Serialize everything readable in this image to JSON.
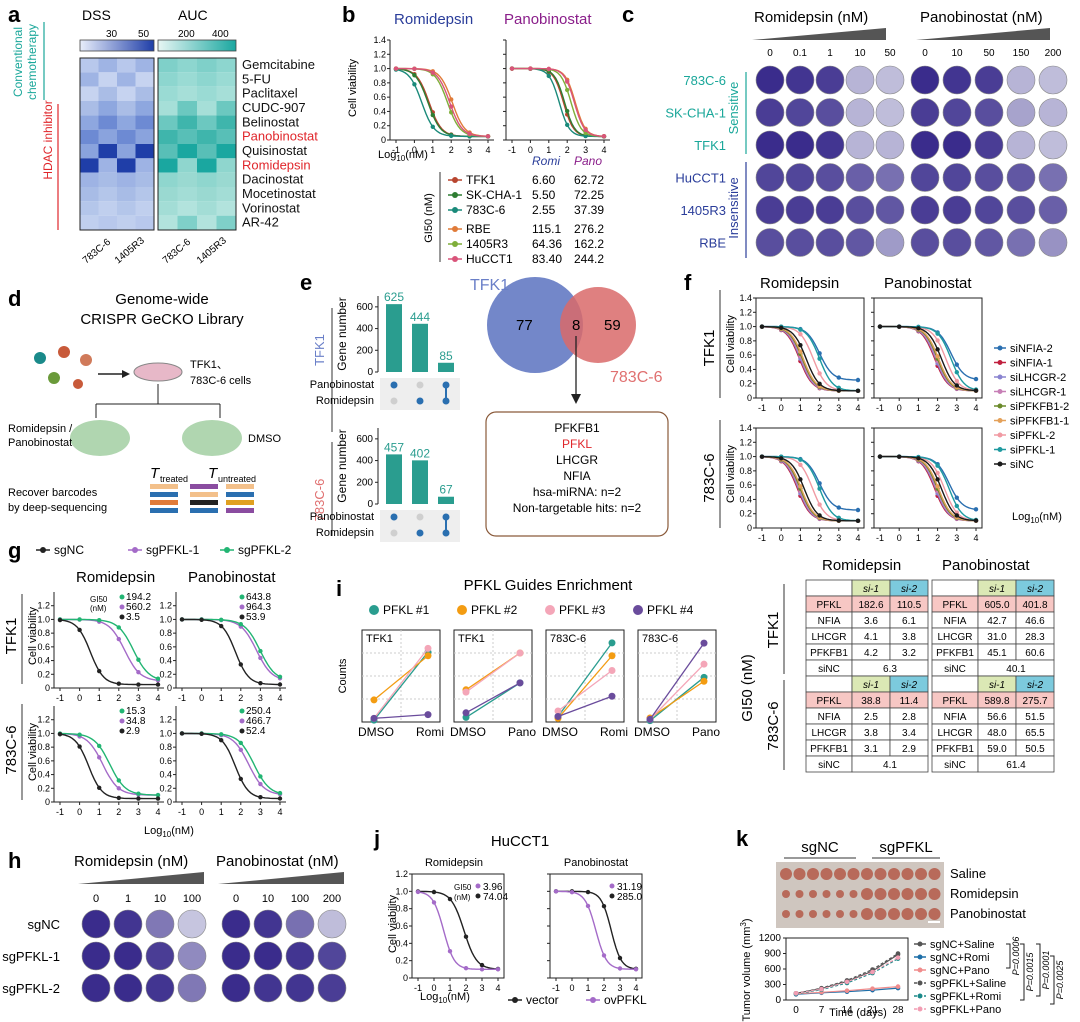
{
  "panels": {
    "a": {
      "letter": "a",
      "headers": [
        "DSS",
        "AUC"
      ],
      "dss_ticks": [
        "30",
        "50"
      ],
      "auc_ticks": [
        "200",
        "400"
      ],
      "group_conventional": [
        "Conventional",
        "chemotherapy"
      ],
      "group_hdac": "HDAC inhibitor",
      "columns": [
        "783C-6",
        "1405R3",
        "783C-6",
        "1405R3"
      ],
      "drugs": [
        {
          "name": "Gemcitabine",
          "color": "#111111"
        },
        {
          "name": "5-FU",
          "color": "#111111"
        },
        {
          "name": "Paclitaxel",
          "color": "#111111"
        },
        {
          "name": "CUDC-907",
          "color": "#111111"
        },
        {
          "name": "Belinostat",
          "color": "#111111"
        },
        {
          "name": "Panobinostat",
          "color": "#e0262b"
        },
        {
          "name": "Quisinostat",
          "color": "#111111"
        },
        {
          "name": "Romidepsin",
          "color": "#e0262b"
        },
        {
          "name": "Dacinostat",
          "color": "#111111"
        },
        {
          "name": "Mocetinostat",
          "color": "#111111"
        },
        {
          "name": "Vorinostat",
          "color": "#111111"
        },
        {
          "name": "AR-42",
          "color": "#111111"
        }
      ]
    },
    "b": {
      "letter": "b",
      "title_romi": "Romidepsin",
      "title_pano": "Panobinostat",
      "ylabel": "Cell viability",
      "xlabel_main": "Log",
      "xlabel_sub": "10",
      "xlabel_unit": "(nM)",
      "gi50_label": "GI50 (nM)",
      "col_romi": "Romi",
      "col_pano": "Pano",
      "rows": [
        {
          "name": "TFK1",
          "romi": "6.60",
          "pano": "62.72",
          "color": "#b8452f"
        },
        {
          "name": "SK-CHA-1",
          "romi": "5.50",
          "pano": "72.25",
          "color": "#2e7d32"
        },
        {
          "name": "783C-6",
          "romi": "2.55",
          "pano": "37.39",
          "color": "#1a8a7a"
        },
        {
          "name": "RBE",
          "romi": "115.1",
          "pano": "276.2",
          "color": "#e07b39"
        },
        {
          "name": "1405R3",
          "romi": "64.36",
          "pano": "162.2",
          "color": "#7fae3a"
        },
        {
          "name": "HuCCT1",
          "romi": "83.40",
          "pano": "244.2",
          "color": "#d9547a"
        }
      ]
    },
    "c": {
      "letter": "c",
      "title_romi": "Romidepsin (nM)",
      "title_pano": "Panobinostat (nM)",
      "romi_doses": [
        "0",
        "0.1",
        "1",
        "10",
        "50"
      ],
      "pano_doses": [
        "0",
        "10",
        "50",
        "150",
        "200"
      ],
      "sensitive": "Sensitive",
      "insensitive": "Insensitive",
      "rows": [
        "783C-6",
        "SK-CHA-1",
        "TFK1",
        "HuCCT1",
        "1405R3",
        "RBE"
      ]
    },
    "d": {
      "letter": "d",
      "title1": "Genome-wide",
      "title2": "CRISPR GeCKO Library",
      "cells1": "TFK1、",
      "cells2": "783C-6 cells",
      "drug1": "Romidepsin /",
      "drug2": "Panobinostat",
      "dmso": "DMSO",
      "treated": "treated",
      "untreated": "untreated",
      "recover1": "Recover barcodes",
      "recover2": "by deep-sequencing"
    },
    "e": {
      "letter": "e",
      "ylabel": "Gene number",
      "tfk1": "TFK1",
      "c783": "783C-6",
      "bars_tfk1": [
        625,
        444,
        85
      ],
      "bars_783": [
        457,
        402,
        67
      ],
      "yticks_tfk1": [
        "600",
        "400",
        "200",
        "0"
      ],
      "yticks_783": [
        "600",
        "400",
        "200",
        "0"
      ],
      "row1": "Panobinostat",
      "row2": "Romidepsin",
      "venn_left_label": "TFK1",
      "venn_right_label": "783C-6",
      "venn_left": "77",
      "venn_mid": "8",
      "venn_right": "59",
      "genes": [
        "PFKFB1",
        "PFKL",
        "LHCGR",
        "NFIA"
      ],
      "mirna": "hsa-miRNA: n=2",
      "nontarget": "Non-targetable hits: n=2"
    },
    "f": {
      "letter": "f",
      "title_romi": "Romidepsin",
      "title_pano": "Panobinostat",
      "row1": "TFK1",
      "row2": "783C-6",
      "ylabel": "Cell viability",
      "xlabel_unit": "(nM)",
      "legend": [
        {
          "name": "siNFIA-2",
          "color": "#2a6fb0"
        },
        {
          "name": "siNFIA-1",
          "color": "#c0203f"
        },
        {
          "name": "siLHCGR-2",
          "color": "#8a84d0"
        },
        {
          "name": "siLHCGR-1",
          "color": "#c77fb6"
        },
        {
          "name": "siPFKFB1-2",
          "color": "#6a8a2a"
        },
        {
          "name": "siPFKFB1-1",
          "color": "#e4a15a"
        },
        {
          "name": "siPFKL-2",
          "color": "#f19aa3"
        },
        {
          "name": "siPFKL-1",
          "color": "#1f9aa0"
        },
        {
          "name": "siNC",
          "color": "#1a1a1a"
        }
      ]
    },
    "g": {
      "letter": "g",
      "legend": [
        {
          "name": "sgNC",
          "color": "#222222"
        },
        {
          "name": "sgPFKL-1",
          "color": "#a46bc8"
        },
        {
          "name": "sgPFKL-2",
          "color": "#22b573"
        }
      ],
      "title_romi": "Romidepsin",
      "title_pano": "Panobinostat",
      "row1": "TFK1",
      "row2": "783C-6",
      "ylabel": "Cell viability",
      "gi50_tag1": "GI50",
      "gi50_tag2": "(nM)",
      "tfk1_romi": [
        "194.2",
        "560.2",
        "3.5"
      ],
      "tfk1_pano": [
        "643.8",
        "964.3",
        "53.9"
      ],
      "c783_romi": [
        "15.3",
        "34.8",
        "2.9"
      ],
      "c783_pano": [
        "250.4",
        "466.7",
        "52.4"
      ],
      "xlabel_unit": "(nM)"
    },
    "h": {
      "letter": "h",
      "title_romi": "Romidepsin (nM)",
      "title_pano": "Panobinostat (nM)",
      "romi_doses": [
        "0",
        "1",
        "10",
        "100"
      ],
      "pano_doses": [
        "0",
        "10",
        "100",
        "200"
      ],
      "rows": [
        "sgNC",
        "sgPFKL-1",
        "sgPFKL-2"
      ]
    },
    "i": {
      "letter": "i",
      "title": "PFKL Guides Enrichment",
      "legend": [
        {
          "name": "PFKL #1",
          "color": "#2a9d8f"
        },
        {
          "name": "PFKL #2",
          "color": "#f39c12"
        },
        {
          "name": "PFKL #3",
          "color": "#f4a6b8"
        },
        {
          "name": "PFKL #4",
          "color": "#6a4c9c"
        }
      ],
      "ylabel": "Counts",
      "panels": [
        {
          "label": "TFK1",
          "x1": "DMSO",
          "x2": "Romi"
        },
        {
          "label": "TFK1",
          "x1": "DMSO",
          "x2": "Pano"
        },
        {
          "label": "783C-6",
          "x1": "DMSO",
          "x2": "Romi"
        },
        {
          "label": "783C-6",
          "x1": "DMSO",
          "x2": "Pano"
        }
      ]
    },
    "gi50tables": {
      "ylabel": "GI50 (nM)",
      "title_romi": "Romidepsin",
      "title_pano": "Panobinostat",
      "row1": "TFK1",
      "row2": "783C-6",
      "si1": "si-1",
      "si2": "si-2",
      "tfk1_romi": {
        "PFKL": [
          "182.6",
          "110.5"
        ],
        "NFIA": [
          "3.6",
          "6.1"
        ],
        "LHCGR": [
          "4.1",
          "3.8"
        ],
        "PFKFB1": [
          "4.2",
          "3.2"
        ],
        "siNC": "6.3"
      },
      "tfk1_pano": {
        "PFKL": [
          "605.0",
          "401.8"
        ],
        "NFIA": [
          "42.7",
          "46.6"
        ],
        "LHCGR": [
          "31.0",
          "28.3"
        ],
        "PFKFB1": [
          "45.1",
          "60.6"
        ],
        "siNC": "40.1"
      },
      "c783_romi": {
        "PFKL": [
          "38.8",
          "11.4"
        ],
        "NFIA": [
          "2.5",
          "2.8"
        ],
        "LHCGR": [
          "3.8",
          "3.4"
        ],
        "PFKFB1": [
          "3.1",
          "2.9"
        ],
        "siNC": "4.1"
      },
      "c783_pano": {
        "PFKL": [
          "589.8",
          "275.7"
        ],
        "NFIA": [
          "56.6",
          "51.5"
        ],
        "LHCGR": [
          "48.0",
          "65.5"
        ],
        "PFKFB1": [
          "59.0",
          "50.5"
        ],
        "siNC": "61.4"
      }
    },
    "j": {
      "letter": "j",
      "title": "HuCCT1",
      "title_romi": "Romidepsin",
      "title_pano": "Panobinostat",
      "ylabel": "Cell viability",
      "gi50_tag1": "GI50",
      "gi50_tag2": "(nM)",
      "romi_vals": [
        "3.96",
        "74.04"
      ],
      "pano_vals": [
        "31.19",
        "285.0"
      ],
      "legend": [
        {
          "name": "vector",
          "color": "#222222"
        },
        {
          "name": "ovPFKL",
          "color": "#a46bc8"
        }
      ],
      "xlabel_unit": "(nM)"
    },
    "k": {
      "letter": "k",
      "sgnc": "sgNC",
      "sgpfkl": "sgPFKL",
      "rows": [
        "Saline",
        "Romidepsin",
        "Panobinostat"
      ],
      "ylabel": "Tumor volume (mm",
      "ylabel_sup": "3",
      "ylabel_end": ")",
      "xlabel": "Time (days)",
      "xticks": [
        "0",
        "7",
        "14",
        "21",
        "28"
      ],
      "yticks": [
        "0",
        "300",
        "600",
        "900",
        "1200"
      ],
      "legend": [
        {
          "name": "sgNC+Saline",
          "color": "#555555"
        },
        {
          "name": "sgNC+Romi",
          "color": "#1e6fa8"
        },
        {
          "name": "sgNC+Pano",
          "color": "#f08c8c"
        },
        {
          "name": "sgPFKL+Saline",
          "color": "#555555"
        },
        {
          "name": "sgPFKL+Romi",
          "color": "#1b8a8a"
        },
        {
          "name": "sgPFKL+Pano",
          "color": "#f29db3"
        }
      ],
      "pvals": [
        "P=0.0006",
        "P=0.0015",
        "P=0.0001",
        "P=0.0025"
      ]
    }
  },
  "chart_data": [
    {
      "type": "bar",
      "title": "",
      "ylabel": "Gene number",
      "categories": [
        "Panobinostat only",
        "Romidepsin only",
        "Both"
      ],
      "series": [
        {
          "name": "TFK1",
          "values": [
            625,
            444,
            85
          ]
        }
      ]
    },
    {
      "type": "bar",
      "title": "",
      "ylabel": "Gene number",
      "categories": [
        "Panobinostat only",
        "Romidepsin only",
        "Both"
      ],
      "series": [
        {
          "name": "783C-6",
          "values": [
            457,
            402,
            67
          ]
        }
      ]
    },
    {
      "type": "line",
      "xlabel": "Time (days)",
      "ylabel": "Tumor volume (mm3)",
      "x": [
        0,
        7,
        14,
        21,
        28
      ],
      "ylim": [
        0,
        1200
      ],
      "series": [
        {
          "name": "sgNC+Saline",
          "values": [
            130,
            220,
            360,
            560,
            880
          ]
        },
        {
          "name": "sgNC+Romi",
          "values": [
            110,
            140,
            160,
            190,
            230
          ]
        },
        {
          "name": "sgNC+Pano",
          "values": [
            120,
            150,
            180,
            220,
            260
          ]
        },
        {
          "name": "sgPFKL+Saline",
          "values": [
            130,
            230,
            380,
            590,
            900
          ]
        },
        {
          "name": "sgPFKL+Romi",
          "values": [
            120,
            200,
            330,
            520,
            800
          ]
        },
        {
          "name": "sgPFKL+Pano",
          "values": [
            130,
            210,
            350,
            540,
            820
          ]
        }
      ]
    }
  ]
}
